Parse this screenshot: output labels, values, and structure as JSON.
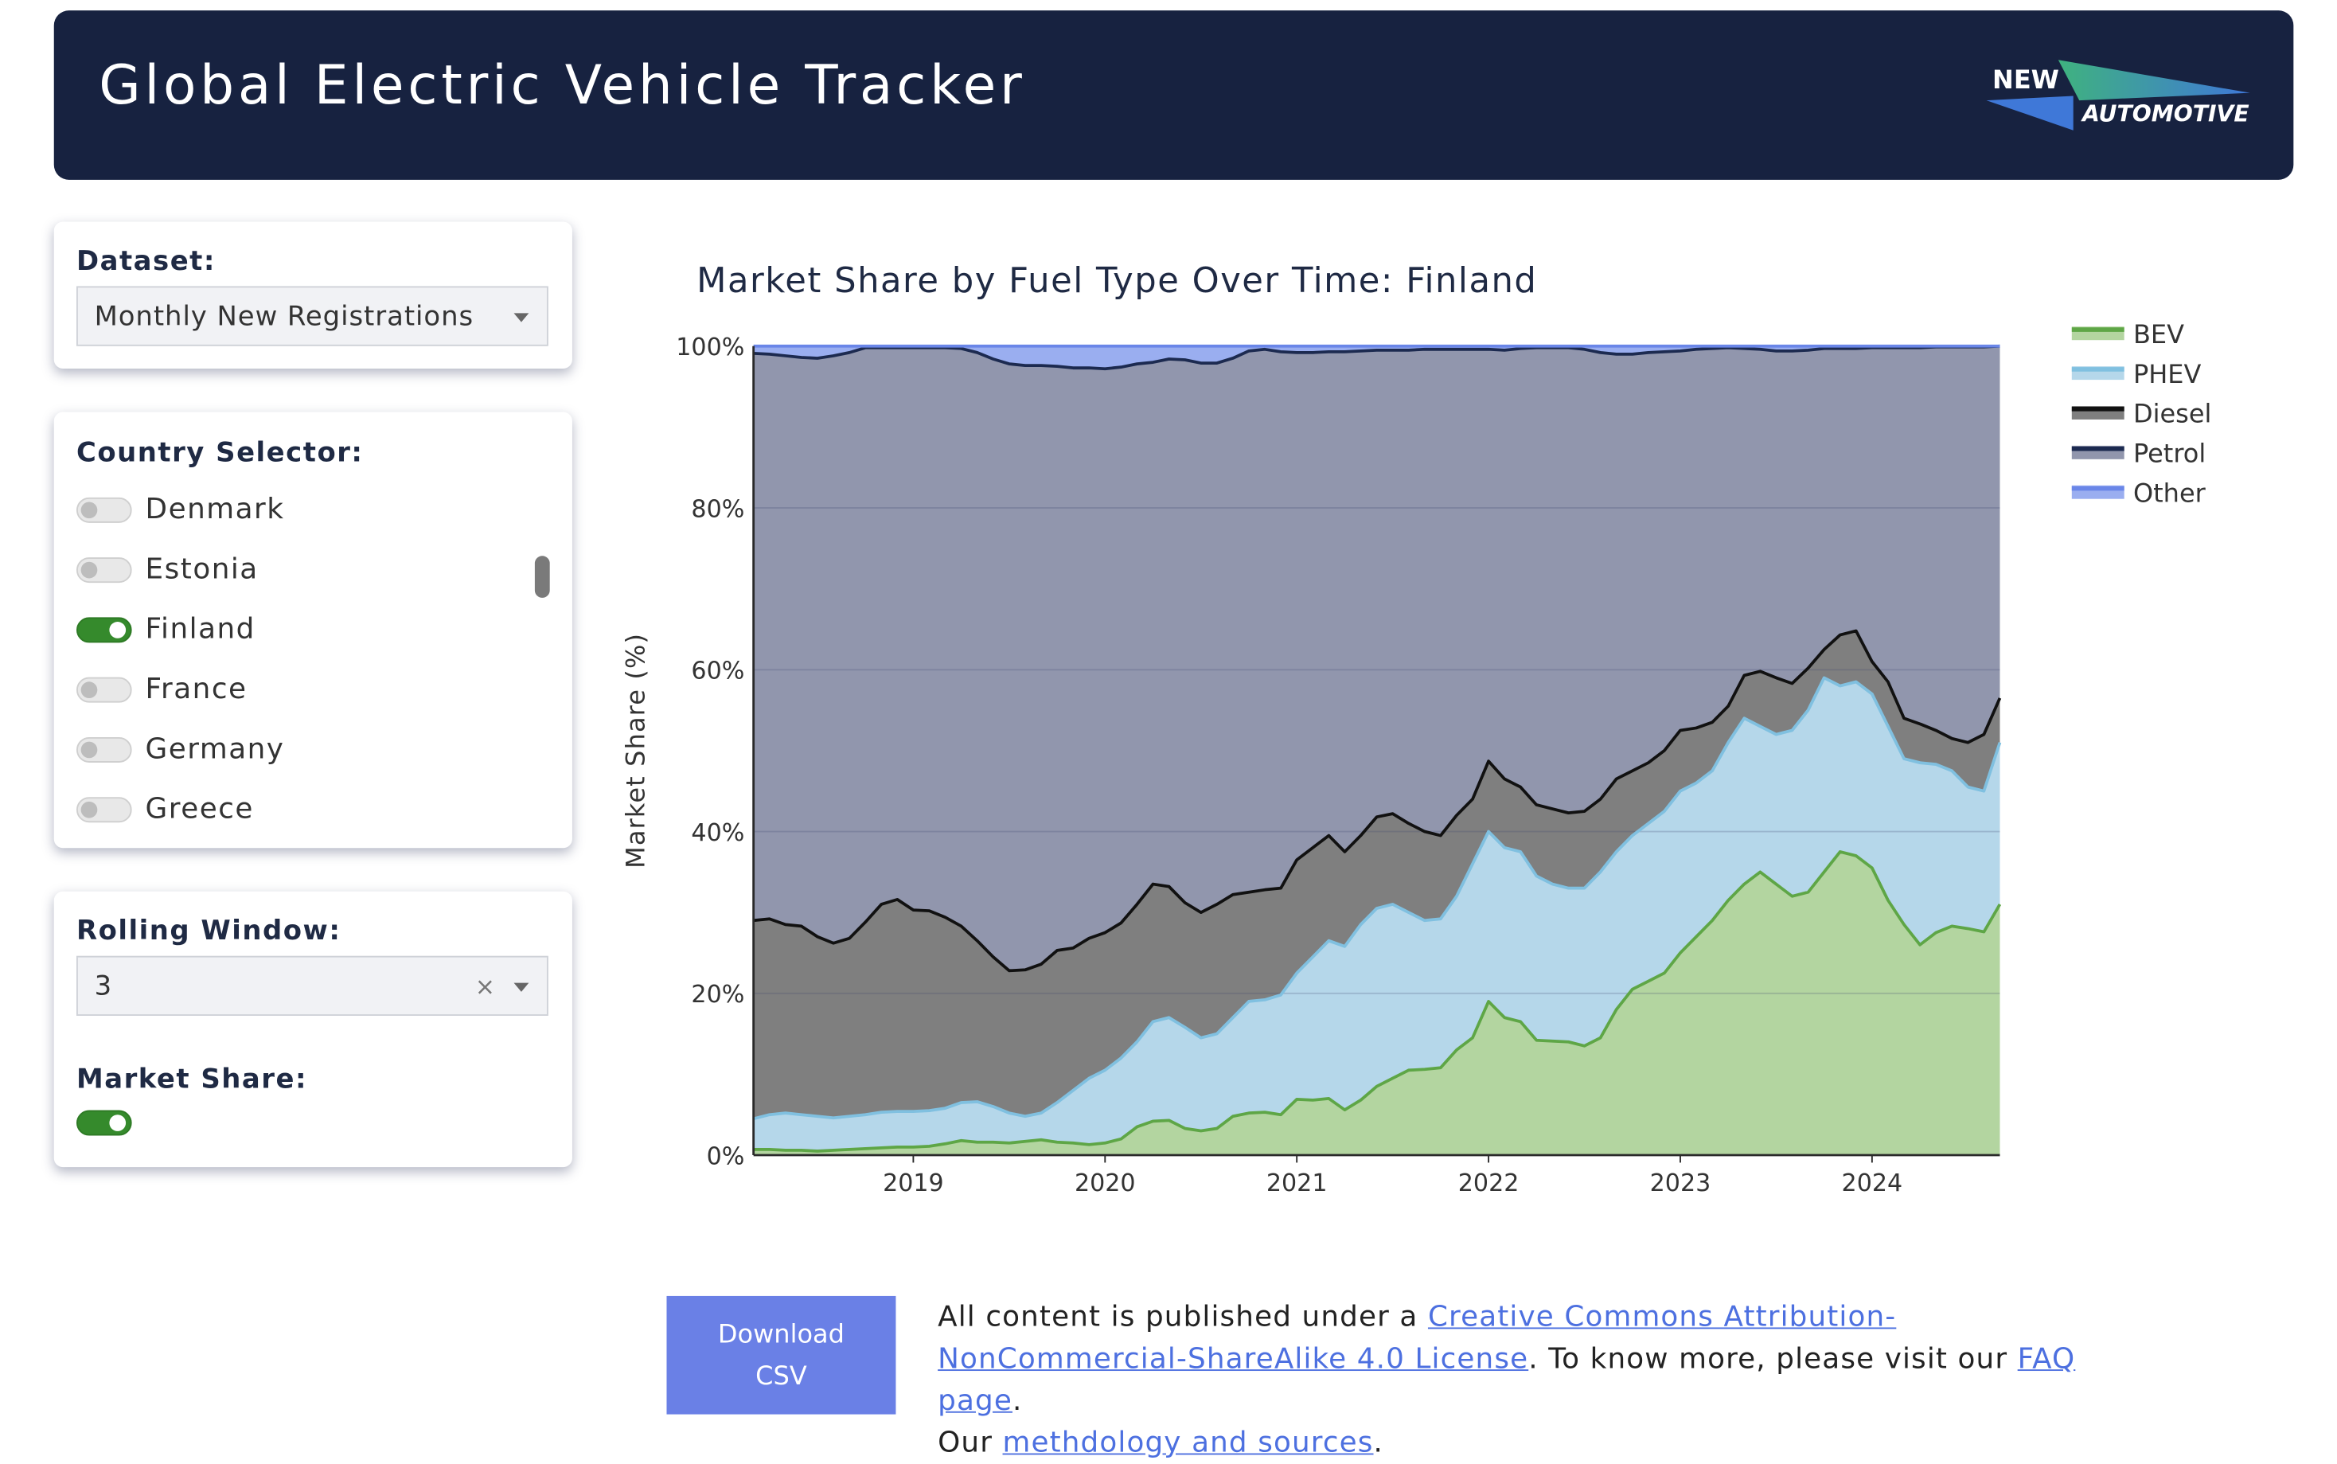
{
  "header": {
    "title": "Global Electric Vehicle Tracker",
    "logo_top": "NEW",
    "logo_bottom": "AUTOMOTIVE"
  },
  "sidebar": {
    "dataset": {
      "label": "Dataset:",
      "value": "Monthly New Registrations"
    },
    "country_selector": {
      "label": "Country Selector:",
      "countries": [
        {
          "name": "Denmark",
          "on": false
        },
        {
          "name": "Estonia",
          "on": false
        },
        {
          "name": "Finland",
          "on": true
        },
        {
          "name": "France",
          "on": false
        },
        {
          "name": "Germany",
          "on": false
        },
        {
          "name": "Greece",
          "on": false
        }
      ]
    },
    "rolling_window": {
      "label": "Rolling Window:",
      "value": "3",
      "clear": "×"
    },
    "market_share": {
      "label": "Market Share:",
      "on": true
    }
  },
  "chart_data": {
    "type": "stacked_area",
    "title": "Market Share by Fuel Type Over Time: Finland",
    "y_label": "Market Share (%)",
    "legend": "right",
    "grid": true,
    "x": [
      "2018-03",
      "2018-04",
      "2018-05",
      "2018-06",
      "2018-07",
      "2018-08",
      "2018-09",
      "2018-10",
      "2018-11",
      "2018-12",
      "2019-01",
      "2019-02",
      "2019-03",
      "2019-04",
      "2019-05",
      "2019-06",
      "2019-07",
      "2019-08",
      "2019-09",
      "2019-10",
      "2019-11",
      "2019-12",
      "2020-01",
      "2020-02",
      "2020-03",
      "2020-04",
      "2020-05",
      "2020-06",
      "2020-07",
      "2020-08",
      "2020-09",
      "2020-10",
      "2020-11",
      "2020-12",
      "2021-01",
      "2021-02",
      "2021-03",
      "2021-04",
      "2021-05",
      "2021-06",
      "2021-07",
      "2021-08",
      "2021-09",
      "2021-10",
      "2021-11",
      "2021-12",
      "2022-01",
      "2022-02",
      "2022-03",
      "2022-04",
      "2022-05",
      "2022-06",
      "2022-07",
      "2022-08",
      "2022-09",
      "2022-10",
      "2022-11",
      "2022-12",
      "2023-01",
      "2023-02",
      "2023-03",
      "2023-04",
      "2023-05",
      "2023-06",
      "2023-07",
      "2023-08",
      "2023-09",
      "2023-10",
      "2023-11",
      "2023-12",
      "2024-01",
      "2024-02",
      "2024-03",
      "2024-04",
      "2024-05",
      "2024-06",
      "2024-07",
      "2024-08",
      "2024-09"
    ],
    "xlim": [
      "2018-03",
      "2024-09"
    ],
    "xticks": [
      2019,
      2020,
      2021,
      2022,
      2023,
      2024
    ],
    "ylim": [
      0,
      100
    ],
    "yticks": [
      {
        "value": 0,
        "label": "0%"
      },
      {
        "value": 20,
        "label": "20%"
      },
      {
        "value": 40,
        "label": "40%"
      },
      {
        "value": 60,
        "label": "60%"
      },
      {
        "value": 80,
        "label": "80%"
      },
      {
        "value": 100,
        "label": "100%"
      }
    ],
    "series": [
      {
        "name": "BEV",
        "color": "#b3d5a0",
        "line_color": "#5ea646",
        "values": [
          0.7,
          0.7,
          0.6,
          0.6,
          0.5,
          0.6,
          0.7,
          0.8,
          0.9,
          1.0,
          1.0,
          1.1,
          1.4,
          1.8,
          1.6,
          1.6,
          1.5,
          1.7,
          1.9,
          1.6,
          1.5,
          1.3,
          1.5,
          2.0,
          3.5,
          4.2,
          4.3,
          3.3,
          3.0,
          3.3,
          4.8,
          5.2,
          5.3,
          5.0,
          6.9,
          6.8,
          7.0,
          5.6,
          6.8,
          8.5,
          9.5,
          10.5,
          10.6,
          10.8,
          13.0,
          14.5,
          19.0,
          17.0,
          16.5,
          14.2,
          14.1,
          14.0,
          13.5,
          14.5,
          18.0,
          20.5,
          21.5,
          22.5,
          25.0,
          27.0,
          29.0,
          31.5,
          33.5,
          35.0,
          33.5,
          32.0,
          32.5,
          35.0,
          37.5,
          37.0,
          35.5,
          31.5,
          28.5,
          26.0,
          27.5,
          28.3,
          28.0,
          27.6,
          31.0
        ]
      },
      {
        "name": "PHEV",
        "color": "#b5d7ea",
        "line_color": "#80c0e0",
        "values": [
          3.8,
          4.3,
          4.6,
          4.4,
          4.3,
          4.0,
          4.1,
          4.2,
          4.4,
          4.4,
          4.4,
          4.4,
          4.4,
          4.7,
          5.0,
          4.4,
          3.7,
          3.1,
          3.3,
          4.9,
          6.5,
          8.2,
          9.0,
          10.0,
          10.5,
          12.3,
          12.7,
          12.5,
          11.5,
          11.7,
          12.2,
          13.8,
          13.9,
          14.8,
          15.6,
          17.7,
          19.5,
          20.2,
          21.7,
          22.0,
          21.5,
          19.5,
          18.4,
          18.4,
          19.0,
          21.5,
          21.0,
          21.0,
          21.0,
          20.3,
          19.4,
          19.0,
          19.5,
          20.5,
          19.5,
          19.0,
          19.5,
          20.0,
          20.0,
          19.0,
          18.5,
          19.5,
          20.5,
          18.0,
          18.5,
          20.5,
          22.5,
          24.0,
          20.5,
          21.5,
          21.5,
          21.5,
          20.5,
          22.5,
          20.8,
          19.2,
          17.5,
          17.4,
          20.0
        ]
      },
      {
        "name": "Diesel",
        "color": "#7f7f7f",
        "line_color": "#111111",
        "values": [
          24.5,
          24.2,
          23.3,
          23.3,
          22.2,
          21.6,
          22.0,
          23.8,
          25.7,
          26.2,
          24.9,
          24.7,
          23.6,
          21.8,
          19.9,
          18.5,
          17.6,
          18.1,
          18.4,
          18.8,
          17.6,
          17.3,
          17.0,
          16.7,
          17.0,
          17.0,
          16.2,
          15.4,
          15.5,
          16.0,
          15.2,
          13.5,
          13.6,
          13.2,
          14.0,
          13.5,
          13.0,
          11.7,
          11.0,
          11.3,
          11.2,
          11.0,
          11.0,
          10.3,
          10.0,
          8.0,
          8.7,
          8.5,
          8.0,
          8.8,
          9.3,
          9.3,
          9.5,
          9.0,
          9.0,
          8.0,
          7.5,
          7.5,
          7.5,
          6.8,
          6.0,
          4.5,
          5.3,
          6.8,
          7.0,
          5.8,
          5.2,
          3.5,
          6.3,
          6.3,
          4.0,
          5.5,
          5.0,
          4.8,
          4.2,
          4.0,
          5.5,
          7.0,
          5.5
        ]
      },
      {
        "name": "Petrol",
        "color": "#9196ad",
        "line_color": "#1c2a50",
        "values": [
          70.1,
          69.8,
          70.3,
          70.3,
          71.5,
          72.6,
          72.4,
          71.0,
          68.8,
          68.2,
          69.5,
          69.6,
          70.4,
          71.4,
          72.7,
          73.9,
          75.0,
          74.7,
          74.0,
          72.2,
          71.7,
          70.5,
          69.7,
          68.7,
          66.8,
          64.5,
          65.2,
          67.1,
          67.9,
          66.9,
          66.3,
          66.9,
          66.8,
          66.3,
          62.7,
          61.2,
          59.8,
          61.8,
          59.9,
          57.7,
          57.3,
          58.5,
          59.6,
          60.1,
          57.6,
          55.6,
          50.9,
          53.0,
          54.2,
          56.5,
          57.0,
          57.5,
          57.1,
          55.2,
          52.5,
          51.5,
          50.7,
          49.3,
          46.9,
          46.8,
          46.2,
          44.3,
          40.4,
          39.8,
          40.4,
          41.1,
          39.3,
          37.2,
          35.4,
          34.9,
          38.8,
          41.3,
          45.8,
          46.5,
          47.4,
          48.4,
          48.9,
          47.9,
          43.5
        ]
      },
      {
        "name": "Other",
        "color": "#9aaef0",
        "line_color": "#6a86e8",
        "values": [
          0.9,
          1.0,
          1.2,
          1.4,
          1.5,
          1.2,
          0.8,
          0.2,
          0.2,
          0.2,
          0.2,
          0.2,
          0.2,
          0.3,
          0.8,
          1.6,
          2.2,
          2.4,
          2.4,
          2.5,
          2.7,
          2.7,
          2.8,
          2.6,
          2.2,
          2.0,
          1.6,
          1.7,
          2.1,
          2.1,
          1.5,
          0.6,
          0.4,
          0.7,
          0.8,
          0.8,
          0.7,
          0.7,
          0.6,
          0.5,
          0.5,
          0.5,
          0.4,
          0.4,
          0.4,
          0.4,
          0.4,
          0.5,
          0.3,
          0.2,
          0.2,
          0.2,
          0.4,
          0.8,
          1.0,
          1.0,
          0.8,
          0.7,
          0.6,
          0.4,
          0.3,
          0.2,
          0.3,
          0.4,
          0.6,
          0.6,
          0.5,
          0.3,
          0.3,
          0.3,
          0.2,
          0.2,
          0.2,
          0.2,
          0.1,
          0.1,
          0.1,
          0.1,
          0.0
        ]
      }
    ]
  },
  "footer": {
    "button": "Download CSV",
    "lines": [
      [
        {
          "text": "All content is published under a ",
          "link": false
        },
        {
          "text": "Creative Commons Attribution-NonCommercial-ShareAlike 4.0 License",
          "link": true
        },
        {
          "text": ". To know more, please visit our ",
          "link": false
        },
        {
          "text": "FAQ page",
          "link": true
        },
        {
          "text": ".",
          "link": false
        }
      ],
      [
        {
          "text": "Our ",
          "link": false
        },
        {
          "text": "methdology and sources",
          "link": true
        },
        {
          "text": ".",
          "link": false
        }
      ]
    ]
  }
}
